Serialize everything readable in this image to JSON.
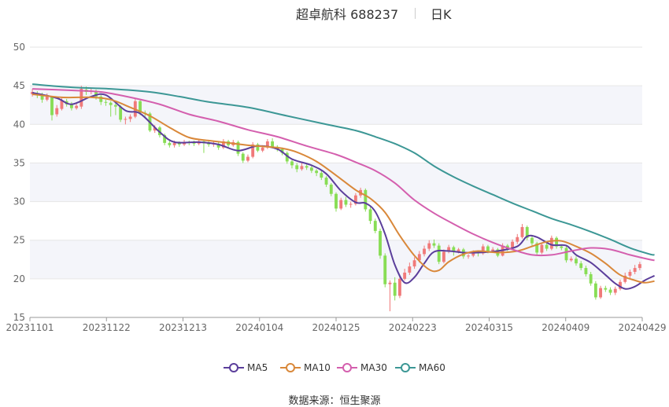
{
  "header": {
    "stock_name_code": "超卓航科 688237",
    "period": "日K"
  },
  "legend": [
    {
      "name": "MA5",
      "color": "#5b3e9b"
    },
    {
      "name": "MA10",
      "color": "#d9883a"
    },
    {
      "name": "MA30",
      "color": "#d45fae"
    },
    {
      "name": "MA60",
      "color": "#3c9795"
    }
  ],
  "source": {
    "label": "数据来源：",
    "value": "恒生聚源"
  },
  "colors": {
    "up": "#f07a7a",
    "down": "#88dd55",
    "grid": "#e6e6e6",
    "band": "#f4f5fa",
    "axis_text": "#666666"
  },
  "chart_data": {
    "type": "candlestick",
    "x_tick_labels": [
      "20231101",
      "20231122",
      "20231213",
      "20240104",
      "20240125",
      "20240223",
      "20240315",
      "20240409",
      "20240429"
    ],
    "y_tick_labels": [
      "15",
      "20",
      "25",
      "30",
      "35",
      "40",
      "45",
      "50"
    ],
    "ylim": [
      15,
      50
    ],
    "grid": true,
    "legend_position": "bottom",
    "candles": [
      [
        43.9,
        44.2,
        44.6,
        43.6
      ],
      [
        44.0,
        43.9,
        44.3,
        43.4
      ],
      [
        43.9,
        43.2,
        44.1,
        42.8
      ],
      [
        43.2,
        43.6,
        44.0,
        43.0
      ],
      [
        43.5,
        41.2,
        43.7,
        40.5
      ],
      [
        41.3,
        42.1,
        42.5,
        41.0
      ],
      [
        42.0,
        43.1,
        43.4,
        41.8
      ],
      [
        43.0,
        42.6,
        43.3,
        42.3
      ],
      [
        42.6,
        42.1,
        42.9,
        41.8
      ],
      [
        42.1,
        42.4,
        42.8,
        41.9
      ],
      [
        42.3,
        44.6,
        45.0,
        42.0
      ],
      [
        44.5,
        44.2,
        44.9,
        43.8
      ],
      [
        44.2,
        44.3,
        44.7,
        43.9
      ],
      [
        44.3,
        43.6,
        44.5,
        43.2
      ],
      [
        43.6,
        42.9,
        43.8,
        42.5
      ],
      [
        42.9,
        42.8,
        43.2,
        42.4
      ],
      [
        42.8,
        42.5,
        43.0,
        41.0
      ],
      [
        42.5,
        42.3,
        43.0,
        41.2
      ],
      [
        42.3,
        40.6,
        42.5,
        40.3
      ],
      [
        40.6,
        40.7,
        41.0,
        40.0
      ],
      [
        40.7,
        41.0,
        41.3,
        40.3
      ],
      [
        41.0,
        43.0,
        43.3,
        40.8
      ],
      [
        43.0,
        41.5,
        43.2,
        41.2
      ],
      [
        41.5,
        41.4,
        41.8,
        40.9
      ],
      [
        41.4,
        39.2,
        41.6,
        39.0
      ],
      [
        39.2,
        39.6,
        39.9,
        38.9
      ],
      [
        39.6,
        38.6,
        39.8,
        38.3
      ],
      [
        38.6,
        37.6,
        38.8,
        37.3
      ],
      [
        37.6,
        37.3,
        37.9,
        37.0
      ],
      [
        37.3,
        37.6,
        37.9,
        37.0
      ],
      [
        37.6,
        37.4,
        37.8,
        37.1
      ],
      [
        37.4,
        37.7,
        38.0,
        37.2
      ],
      [
        37.7,
        37.6,
        37.9,
        37.3
      ],
      [
        37.6,
        37.5,
        37.9,
        37.2
      ],
      [
        37.5,
        37.8,
        38.0,
        37.3
      ],
      [
        37.8,
        37.6,
        38.0,
        36.3
      ],
      [
        37.6,
        37.4,
        37.9,
        37.1
      ],
      [
        37.4,
        37.5,
        37.8,
        37.1
      ],
      [
        37.5,
        37.0,
        37.7,
        36.7
      ],
      [
        37.0,
        37.8,
        38.1,
        36.8
      ],
      [
        37.8,
        37.3,
        38.0,
        37.0
      ],
      [
        37.3,
        37.7,
        38.0,
        37.1
      ],
      [
        37.7,
        36.2,
        37.9,
        35.9
      ],
      [
        36.2,
        35.3,
        36.4,
        35.0
      ],
      [
        35.3,
        35.8,
        36.1,
        35.1
      ],
      [
        35.8,
        37.4,
        37.7,
        35.6
      ],
      [
        37.4,
        36.6,
        37.6,
        36.4
      ],
      [
        36.6,
        37.0,
        37.3,
        36.4
      ],
      [
        37.0,
        37.8,
        38.1,
        36.8
      ],
      [
        37.8,
        37.1,
        38.2,
        36.9
      ],
      [
        37.1,
        36.8,
        37.3,
        36.5
      ],
      [
        36.8,
        36.3,
        37.0,
        36.0
      ],
      [
        36.3,
        35.2,
        36.5,
        34.9
      ],
      [
        35.2,
        34.7,
        35.4,
        34.3
      ],
      [
        34.7,
        34.2,
        35.0,
        33.8
      ],
      [
        34.2,
        34.6,
        35.0,
        34.0
      ],
      [
        34.6,
        34.4,
        34.9,
        34.1
      ],
      [
        34.4,
        34.0,
        34.8,
        33.7
      ],
      [
        34.0,
        33.7,
        34.2,
        33.3
      ],
      [
        33.7,
        33.1,
        34.0,
        32.8
      ],
      [
        33.1,
        32.2,
        33.3,
        31.9
      ],
      [
        32.2,
        31.0,
        32.4,
        30.7
      ],
      [
        31.0,
        29.1,
        31.2,
        28.7
      ],
      [
        29.1,
        30.2,
        30.5,
        28.9
      ],
      [
        30.2,
        29.6,
        30.6,
        29.3
      ],
      [
        29.6,
        29.7,
        30.0,
        29.2
      ],
      [
        29.7,
        30.8,
        31.1,
        29.5
      ],
      [
        30.8,
        31.5,
        31.8,
        30.5
      ],
      [
        31.5,
        29.0,
        31.7,
        28.7
      ],
      [
        29.0,
        27.5,
        29.3,
        27.1
      ],
      [
        27.5,
        26.2,
        27.8,
        25.9
      ],
      [
        26.2,
        23.0,
        26.5,
        22.6
      ],
      [
        23.0,
        19.3,
        23.3,
        18.9
      ],
      [
        19.3,
        19.5,
        19.8,
        15.8
      ],
      [
        19.5,
        17.8,
        20.2,
        17.2
      ],
      [
        17.8,
        20.0,
        20.5,
        17.5
      ],
      [
        20.0,
        20.8,
        21.3,
        19.8
      ],
      [
        20.8,
        21.6,
        22.1,
        20.5
      ],
      [
        21.6,
        22.4,
        22.8,
        21.3
      ],
      [
        22.4,
        23.2,
        23.6,
        22.1
      ],
      [
        23.2,
        23.9,
        24.3,
        22.9
      ],
      [
        23.9,
        24.6,
        25.0,
        23.6
      ],
      [
        24.6,
        24.3,
        25.1,
        24.0
      ],
      [
        24.3,
        22.2,
        24.6,
        21.9
      ],
      [
        22.2,
        23.5,
        23.8,
        22.0
      ],
      [
        23.5,
        24.1,
        24.4,
        23.3
      ],
      [
        24.1,
        23.5,
        24.3,
        23.0
      ],
      [
        23.5,
        23.8,
        24.0,
        23.3
      ],
      [
        23.8,
        22.9,
        24.0,
        22.6
      ],
      [
        22.9,
        23.0,
        23.2,
        22.6
      ],
      [
        23.0,
        23.4,
        23.7,
        22.8
      ],
      [
        23.4,
        23.3,
        23.7,
        22.9
      ],
      [
        23.3,
        24.2,
        24.5,
        23.1
      ],
      [
        24.2,
        23.6,
        24.4,
        23.3
      ],
      [
        23.6,
        23.8,
        24.1,
        23.4
      ],
      [
        23.8,
        23.0,
        24.0,
        22.8
      ],
      [
        23.0,
        24.3,
        24.6,
        22.9
      ],
      [
        24.3,
        23.9,
        24.5,
        23.6
      ],
      [
        23.9,
        24.8,
        25.1,
        23.7
      ],
      [
        24.8,
        25.4,
        25.8,
        24.5
      ],
      [
        25.4,
        26.7,
        27.1,
        25.2
      ],
      [
        26.7,
        25.3,
        26.9,
        25.0
      ],
      [
        25.3,
        24.6,
        25.6,
        24.3
      ],
      [
        24.6,
        23.4,
        24.8,
        23.1
      ],
      [
        23.4,
        24.4,
        24.7,
        23.2
      ],
      [
        24.4,
        23.9,
        24.6,
        23.6
      ],
      [
        23.9,
        25.3,
        25.6,
        23.7
      ],
      [
        25.3,
        24.2,
        25.5,
        23.9
      ],
      [
        24.2,
        24.0,
        24.4,
        23.7
      ],
      [
        24.0,
        22.4,
        24.2,
        22.1
      ],
      [
        22.4,
        22.6,
        22.9,
        22.2
      ],
      [
        22.6,
        22.0,
        22.9,
        21.7
      ],
      [
        22.0,
        21.4,
        22.3,
        21.1
      ],
      [
        21.4,
        20.6,
        21.7,
        20.3
      ],
      [
        20.6,
        19.4,
        20.9,
        19.1
      ],
      [
        19.4,
        17.6,
        19.7,
        17.3
      ],
      [
        17.6,
        18.8,
        19.1,
        17.4
      ],
      [
        18.8,
        18.6,
        19.1,
        18.3
      ],
      [
        18.6,
        18.2,
        18.9,
        17.9
      ],
      [
        18.2,
        18.7,
        19.0,
        17.9
      ],
      [
        18.7,
        19.6,
        19.9,
        18.5
      ],
      [
        19.6,
        20.4,
        20.8,
        19.4
      ],
      [
        20.4,
        20.9,
        21.2,
        20.1
      ],
      [
        20.9,
        21.4,
        21.8,
        20.6
      ],
      [
        21.4,
        21.9,
        22.2,
        21.1
      ]
    ],
    "series": [
      {
        "name": "MA5",
        "color": "#5b3e9b",
        "values": [
          [
            0,
            44.1
          ],
          [
            5,
            43.4
          ],
          [
            8,
            42.6
          ],
          [
            12,
            43.6
          ],
          [
            15,
            43.8
          ],
          [
            19,
            41.8
          ],
          [
            22,
            41.4
          ],
          [
            26,
            39.0
          ],
          [
            29,
            37.7
          ],
          [
            34,
            37.7
          ],
          [
            38,
            37.4
          ],
          [
            42,
            36.6
          ],
          [
            46,
            37.2
          ],
          [
            50,
            36.8
          ],
          [
            53,
            35.5
          ],
          [
            57,
            34.7
          ],
          [
            60,
            33.6
          ],
          [
            63,
            31.4
          ],
          [
            66,
            29.9
          ],
          [
            68,
            29.8
          ],
          [
            70,
            28.7
          ],
          [
            72,
            25.8
          ],
          [
            74,
            21.8
          ],
          [
            76,
            19.5
          ],
          [
            78,
            20.2
          ],
          [
            80,
            22.0
          ],
          [
            82,
            23.5
          ],
          [
            85,
            23.6
          ],
          [
            88,
            23.4
          ],
          [
            91,
            23.4
          ],
          [
            95,
            23.6
          ],
          [
            99,
            24.2
          ],
          [
            101,
            25.5
          ],
          [
            103,
            25.4
          ],
          [
            106,
            24.4
          ],
          [
            109,
            24.3
          ],
          [
            111,
            23.1
          ],
          [
            114,
            22.1
          ],
          [
            117,
            20.5
          ],
          [
            119,
            19.4
          ],
          [
            121,
            18.7
          ],
          [
            123,
            19.0
          ],
          [
            125,
            19.8
          ],
          [
            127,
            20.4
          ]
        ]
      },
      {
        "name": "MA10",
        "color": "#d9883a",
        "values": [
          [
            0,
            43.9
          ],
          [
            6,
            43.5
          ],
          [
            12,
            43.5
          ],
          [
            16,
            43.2
          ],
          [
            20,
            42.2
          ],
          [
            24,
            41.1
          ],
          [
            28,
            39.6
          ],
          [
            32,
            38.3
          ],
          [
            36,
            37.9
          ],
          [
            40,
            37.6
          ],
          [
            44,
            37.3
          ],
          [
            48,
            37.1
          ],
          [
            51,
            36.9
          ],
          [
            54,
            36.4
          ],
          [
            58,
            35.2
          ],
          [
            62,
            33.4
          ],
          [
            66,
            31.5
          ],
          [
            69,
            30.4
          ],
          [
            72,
            28.6
          ],
          [
            75,
            25.6
          ],
          [
            78,
            23.0
          ],
          [
            81,
            21.2
          ],
          [
            83,
            21.1
          ],
          [
            85,
            22.2
          ],
          [
            88,
            23.2
          ],
          [
            91,
            23.6
          ],
          [
            95,
            23.4
          ],
          [
            99,
            23.6
          ],
          [
            102,
            24.2
          ],
          [
            105,
            24.8
          ],
          [
            108,
            24.9
          ],
          [
            111,
            24.2
          ],
          [
            114,
            23.3
          ],
          [
            117,
            22.0
          ],
          [
            120,
            20.5
          ],
          [
            123,
            19.8
          ],
          [
            125,
            19.5
          ],
          [
            127,
            19.7
          ]
        ]
      },
      {
        "name": "MA30",
        "color": "#d45fae",
        "values": [
          [
            0,
            44.6
          ],
          [
            8,
            44.4
          ],
          [
            14,
            44.2
          ],
          [
            20,
            43.5
          ],
          [
            26,
            42.6
          ],
          [
            32,
            41.3
          ],
          [
            38,
            40.4
          ],
          [
            44,
            39.3
          ],
          [
            50,
            38.4
          ],
          [
            56,
            37.2
          ],
          [
            62,
            36.1
          ],
          [
            66,
            35.1
          ],
          [
            70,
            34.0
          ],
          [
            74,
            32.4
          ],
          [
            78,
            30.2
          ],
          [
            82,
            28.5
          ],
          [
            86,
            27.1
          ],
          [
            90,
            25.8
          ],
          [
            94,
            24.7
          ],
          [
            98,
            23.8
          ],
          [
            102,
            23.1
          ],
          [
            106,
            23.1
          ],
          [
            110,
            23.6
          ],
          [
            114,
            24.0
          ],
          [
            118,
            23.8
          ],
          [
            122,
            23.1
          ],
          [
            126,
            22.5
          ],
          [
            127,
            22.4
          ]
        ]
      },
      {
        "name": "MA60",
        "color": "#3c9795",
        "values": [
          [
            0,
            45.2
          ],
          [
            8,
            44.8
          ],
          [
            16,
            44.6
          ],
          [
            24,
            44.2
          ],
          [
            30,
            43.6
          ],
          [
            36,
            42.9
          ],
          [
            44,
            42.2
          ],
          [
            52,
            41.1
          ],
          [
            60,
            40.0
          ],
          [
            66,
            39.2
          ],
          [
            70,
            38.4
          ],
          [
            74,
            37.5
          ],
          [
            78,
            36.3
          ],
          [
            82,
            34.6
          ],
          [
            86,
            33.2
          ],
          [
            90,
            32.0
          ],
          [
            94,
            30.9
          ],
          [
            98,
            29.8
          ],
          [
            102,
            28.8
          ],
          [
            106,
            27.8
          ],
          [
            110,
            27.0
          ],
          [
            114,
            26.1
          ],
          [
            118,
            25.1
          ],
          [
            122,
            24.0
          ],
          [
            126,
            23.2
          ],
          [
            127,
            23.1
          ]
        ]
      }
    ]
  }
}
